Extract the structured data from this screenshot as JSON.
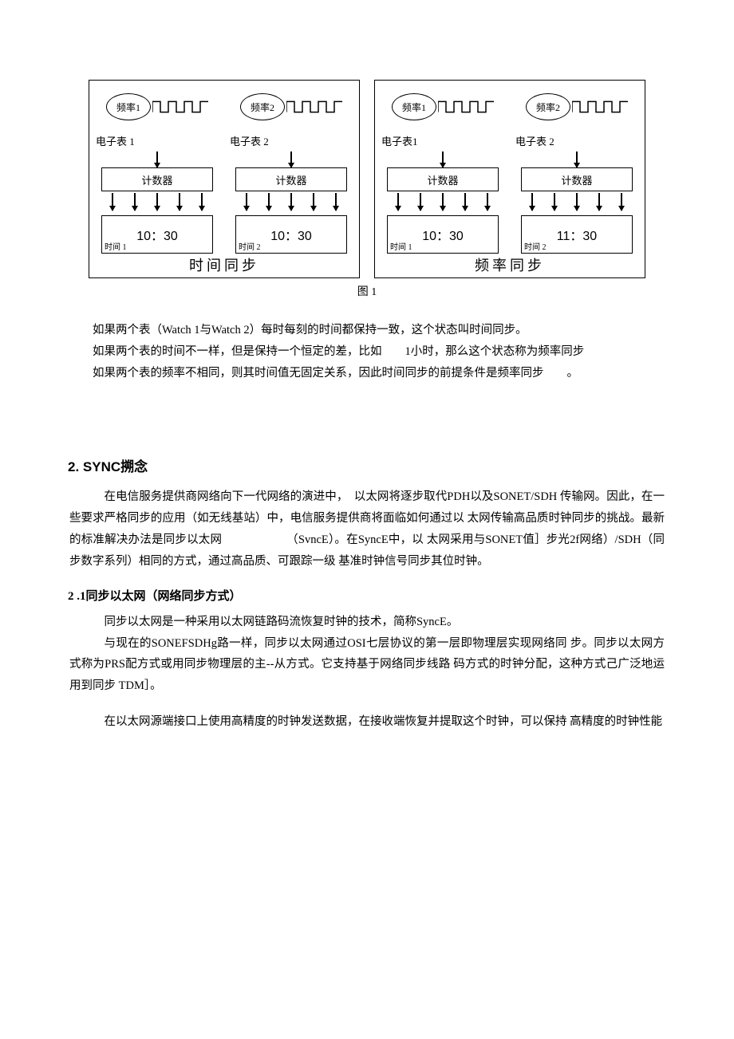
{
  "figure": {
    "stroke_color": "#000000",
    "bg_color": "#ffffff",
    "font_family": "SimSun",
    "caption": "图 1",
    "panels": [
      {
        "caption": "时间同步",
        "columns": [
          {
            "freq_label": "频率1",
            "watch_label": "电子表 1",
            "counter_label": "计数器",
            "time_value": "10：30",
            "time_sub": "时间 1",
            "arrow_count": 5
          },
          {
            "freq_label": "频率2",
            "watch_label": "电子表 2",
            "counter_label": "计数器",
            "time_value": "10：30",
            "time_sub": "时间 2",
            "arrow_count": 5
          }
        ]
      },
      {
        "caption": "频率同步",
        "columns": [
          {
            "freq_label": "频率1",
            "watch_label": "电子表1",
            "counter_label": "计数器",
            "time_value": "10：30",
            "time_sub": "时间 1",
            "arrow_count": 5
          },
          {
            "freq_label": "频率2",
            "watch_label": "电子表 2",
            "counter_label": "计数器",
            "time_value": "11：30",
            "time_sub": "时间 2",
            "arrow_count": 5
          }
        ]
      }
    ]
  },
  "intro": {
    "p1": "如果两个表（Watch 1与Watch 2）每时每刻的时间都保持一致，这个状态叫时间同步。",
    "p2": "如果两个表的时间不一样，但是保持一个恒定的差，比如　　1小时，那么这个状态称为频率同步",
    "p3": "如果两个表的频率不相同，则其时间值无固定关系，因此时间同步的前提条件是频率同步　　。"
  },
  "sec2": {
    "heading": "2.  SYNC搠念",
    "p1": "在电信服务提供商网络向下一代网络的演进中，　以太网将逐步取代PDH以及SONET/SDH 传输网。因此，在一些要求严格同步的应用（如无线基站）中，电信服务提供商将面临如何通过以 太网传输高品质时钟同步的挑战。最新的标准解决办法是同步以太网　　　　　　（SvncE）。在SyncE中，以 太网采用与SONET值］步光2f网络）/SDH（同步数字系列）相同的方式，通过高品质、可跟踪一级 基准时钟信号同步其位时钟。"
  },
  "sec21": {
    "heading": "2 .1同步以太网（网络同步方式）",
    "p1": "同步以太网是一种采用以太网链路码流恢复时钟的技术，简称SyncE。",
    "p2": "与现在的SONEFSDHg路一样，同步以太网通过OSI七层协议的第一层即物理层实现网络同 步。同步以太网方式称为PRS配方式或用同步物理层的主--从方式。它支持基于网络同步线路 码方式的时钟分配，这种方式己广泛地运用到同步 TDM］。",
    "p3": "在以太网源端接口上使用高精度的时钟发送数据，在接收端恢复并提取这个时钟，可以保持 高精度的时钟性能"
  }
}
